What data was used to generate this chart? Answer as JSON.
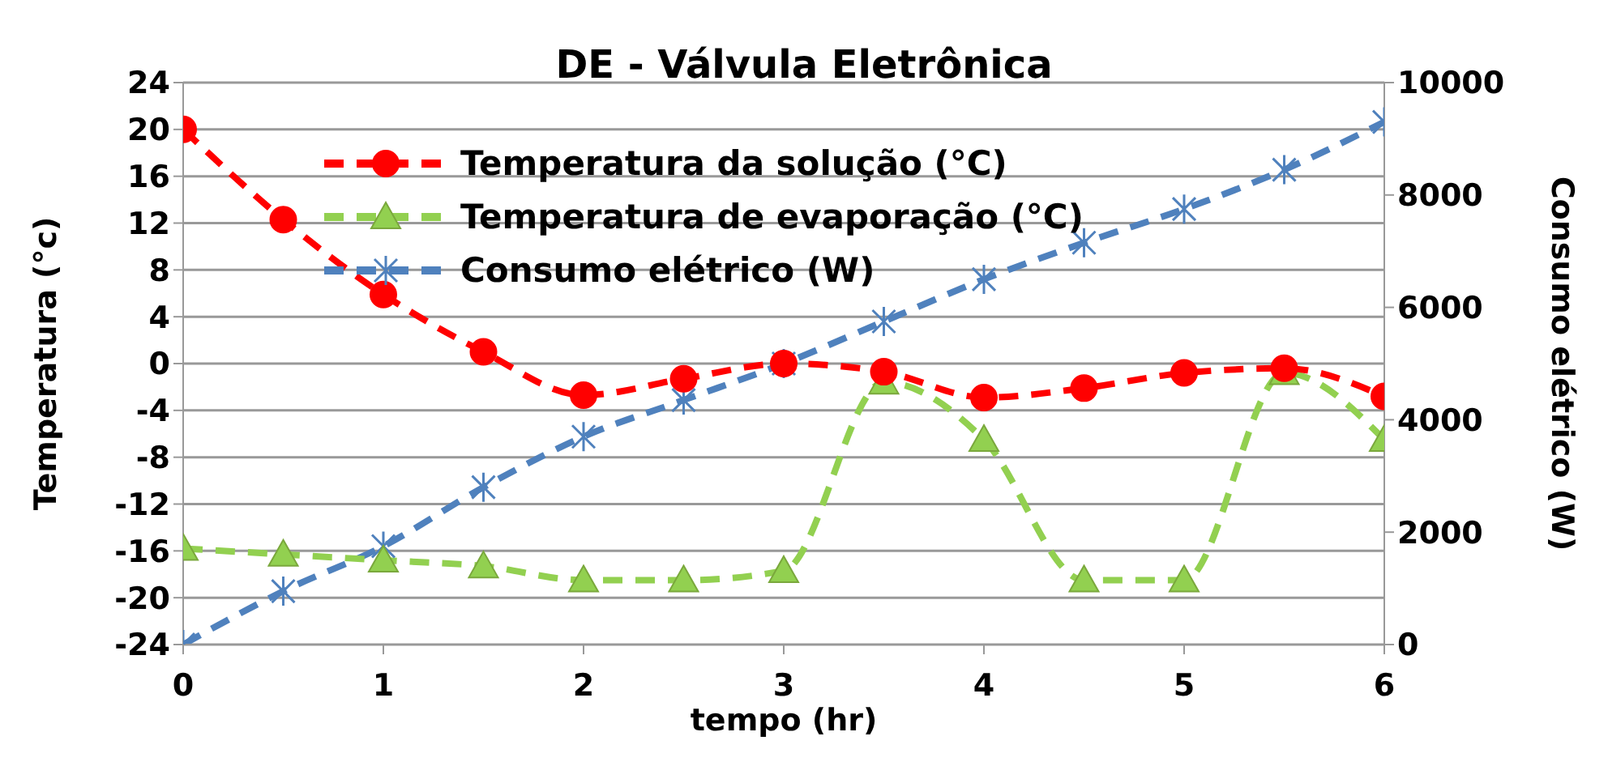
{
  "chart_data": {
    "type": "line",
    "title": "DE - Válvula Eletrônica",
    "xlabel": "tempo (hr)",
    "ylabel": "Temperatura (°c)",
    "y2label": "Consumo elétrico (W)",
    "x": [
      0,
      0.5,
      1,
      1.5,
      2,
      2.5,
      3,
      3.5,
      4,
      4.5,
      5,
      5.5,
      6
    ],
    "xlim": [
      0,
      6
    ],
    "xticks": [
      0,
      1,
      2,
      3,
      4,
      5,
      6
    ],
    "ylim": [
      -24,
      24
    ],
    "yticks": [
      -24,
      -20,
      -16,
      -12,
      -8,
      -4,
      0,
      4,
      8,
      12,
      16,
      20,
      24
    ],
    "y2lim": [
      0,
      10000
    ],
    "y2ticks": [
      0,
      2000,
      4000,
      6000,
      8000,
      10000
    ],
    "grid": "y",
    "legend": "top",
    "line_style": "dashed",
    "series": [
      {
        "name": "Temperatura da  solução (°C)",
        "color": "#ff0000",
        "marker": "circle",
        "values": [
          20,
          12.3,
          5.9,
          1,
          -2.7,
          -1.3,
          0,
          -0.7,
          -2.9,
          -2.1,
          -0.8,
          -0.4,
          -2.8
        ]
      },
      {
        "name": "Temperatura de evaporação (°C)",
        "color": "#92d050",
        "marker": "triangle",
        "values": [
          -15.8,
          -16.3,
          -16.8,
          -17.3,
          -18.5,
          -18.5,
          -17.7,
          -1.6,
          -6.5,
          -18.5,
          -18.5,
          -0.8,
          -6.5
        ]
      },
      {
        "name": "Consumo elétrico (W)",
        "color": "#4f81bd",
        "marker": "cross",
        "axis": "y2",
        "values": [
          0,
          950,
          1750,
          2800,
          3700,
          4350,
          5000,
          5750,
          6500,
          7150,
          7750,
          8450,
          9300
        ]
      }
    ]
  }
}
